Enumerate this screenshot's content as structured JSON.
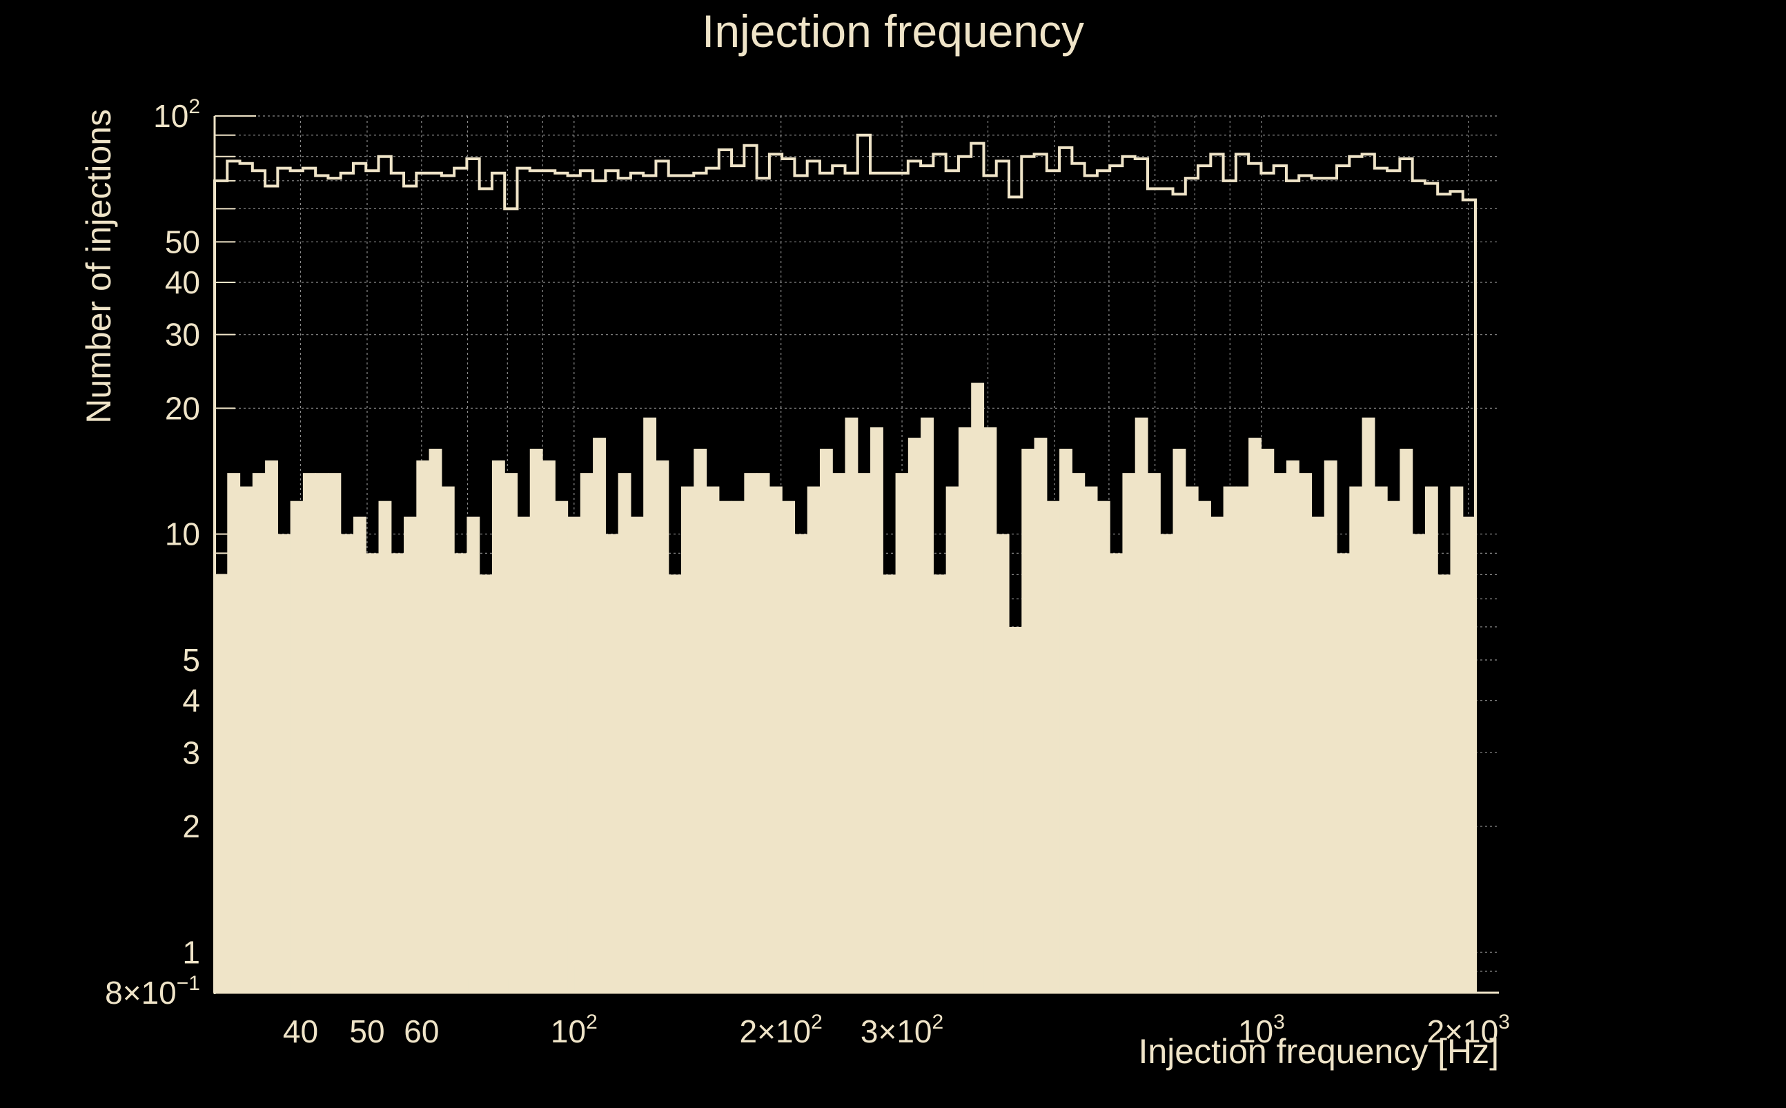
{
  "chart_data": {
    "type": "bar",
    "title": "Injection frequency",
    "xlabel": "Injection frequency [Hz]",
    "ylabel": "Number of injections",
    "x_scale": "log",
    "y_scale": "log",
    "xlim": [
      30,
      2048
    ],
    "ylim": [
      0.8,
      100
    ],
    "grid": true,
    "x_ticks": [
      {
        "value": 40,
        "label": "40"
      },
      {
        "value": 50,
        "label": "50"
      },
      {
        "value": 60,
        "label": "60"
      },
      {
        "value": 100,
        "label": "10",
        "sup": "2"
      },
      {
        "value": 200,
        "label": "2×10",
        "sup": "2"
      },
      {
        "value": 300,
        "label": "3×10",
        "sup": "2"
      },
      {
        "value": 1000,
        "label": "10",
        "sup": "3"
      },
      {
        "value": 2000,
        "label": "2×10",
        "sup": "3"
      }
    ],
    "y_ticks": [
      {
        "value": 0.8,
        "label": "8×10",
        "sup": "−1"
      },
      {
        "value": 1,
        "label": "1"
      },
      {
        "value": 2,
        "label": "2"
      },
      {
        "value": 3,
        "label": "3"
      },
      {
        "value": 4,
        "label": "4"
      },
      {
        "value": 5,
        "label": "5"
      },
      {
        "value": 10,
        "label": "10"
      },
      {
        "value": 20,
        "label": "20"
      },
      {
        "value": 30,
        "label": "30"
      },
      {
        "value": 40,
        "label": "40"
      },
      {
        "value": 50,
        "label": "50"
      },
      {
        "value": 100,
        "label": "10",
        "sup": "2"
      }
    ],
    "series": [
      {
        "style": "filled",
        "values": [
          8,
          14,
          13,
          14,
          15,
          10,
          12,
          14,
          14,
          14,
          10,
          11,
          9,
          12,
          9,
          11,
          15,
          16,
          13,
          9,
          11,
          8,
          15,
          14,
          11,
          16,
          15,
          12,
          11,
          14,
          17,
          10,
          14,
          11,
          19,
          15,
          8,
          13,
          16,
          13,
          12,
          12,
          14,
          14,
          13,
          12,
          10,
          13,
          16,
          14,
          19,
          14,
          18,
          8,
          14,
          17,
          19,
          8,
          13,
          18,
          23,
          18,
          10,
          6,
          16,
          17,
          12,
          16,
          14,
          13,
          12,
          9,
          14,
          19,
          14,
          10,
          16,
          13,
          12,
          11,
          13,
          13,
          17,
          16,
          14,
          15,
          14,
          11,
          15,
          9,
          13,
          19,
          13,
          12,
          16,
          10,
          13,
          8,
          13,
          11
        ],
        "color": "#efe4c8"
      },
      {
        "style": "step",
        "values": [
          70,
          78,
          77,
          74,
          68,
          75,
          74,
          75,
          72,
          71,
          73,
          77,
          74,
          80,
          73,
          68,
          73,
          73,
          72,
          75,
          79,
          67,
          73,
          60,
          75,
          74,
          74,
          73,
          72,
          74,
          70,
          74,
          71,
          73,
          72,
          78,
          72,
          72,
          73,
          75,
          83,
          76,
          85,
          71,
          81,
          79,
          72,
          78,
          73,
          76,
          73,
          90,
          73,
          73,
          73,
          78,
          76,
          81,
          74,
          80,
          86,
          72,
          78,
          64,
          80,
          81,
          74,
          84,
          77,
          72,
          74,
          76,
          80,
          79,
          67,
          67,
          65,
          71,
          76,
          81,
          70,
          81,
          77,
          73,
          76,
          70,
          72,
          71,
          71,
          76,
          80,
          81,
          75,
          74,
          79,
          70,
          69,
          65,
          66,
          63
        ],
        "color": "#efe4c8"
      }
    ]
  }
}
